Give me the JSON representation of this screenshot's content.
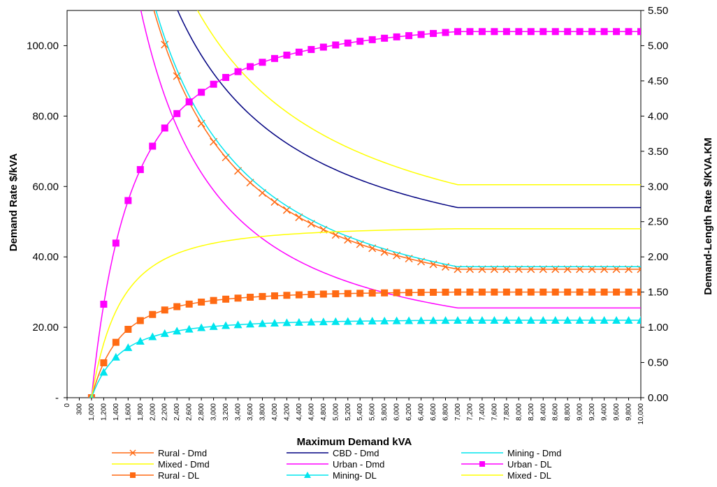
{
  "chart_data": {
    "type": "line",
    "xlabel": "Maximum Demand kVA",
    "ylabel_left": "Demand Rate $/kVA",
    "ylabel_right": "Demand-Length Rate $/KVA.KM",
    "x_ticks": [
      "0",
      "300",
      "1,000",
      "1,200",
      "1,400",
      "1,600",
      "1,800",
      "2,000",
      "2,200",
      "2,400",
      "2,600",
      "2,800",
      "3,000",
      "3,200",
      "3,400",
      "3,600",
      "3,800",
      "4,000",
      "4,200",
      "4,400",
      "4,600",
      "4,800",
      "5,000",
      "5,200",
      "5,400",
      "5,600",
      "5,800",
      "6,000",
      "6,200",
      "6,400",
      "6,600",
      "6,800",
      "7,000",
      "7,200",
      "7,400",
      "7,600",
      "7,800",
      "8,000",
      "8,200",
      "8,400",
      "8,600",
      "8,800",
      "9,000",
      "9,200",
      "9,400",
      "9,600",
      "9,800",
      "10,000"
    ],
    "y_left_ticks": [
      "-",
      "20.00",
      "40.00",
      "60.00",
      "80.00",
      "100.00"
    ],
    "y_right_ticks": [
      "0.00",
      "0.50",
      "1.00",
      "1.50",
      "2.00",
      "2.50",
      "3.00",
      "3.50",
      "4.00",
      "4.50",
      "5.00",
      "5.50"
    ],
    "y_left_range": [
      0,
      110
    ],
    "y_right_range": [
      0,
      5.5
    ],
    "legend_position": "bottom",
    "grid": false,
    "series": [
      {
        "name": "Rural - Dmd",
        "axis": "left",
        "color": "#ff6a13",
        "marker": "x",
        "a": 36.5,
        "b": 167,
        "p": 1.35,
        "floor": 1000,
        "plateau": 7000
      },
      {
        "name": "CBD - Dmd",
        "axis": "left",
        "color": "#000080",
        "marker": "none",
        "a": 54,
        "b": 155,
        "p": 1.2,
        "floor": 1000,
        "plateau": 7000
      },
      {
        "name": "Mining - Dmd",
        "axis": "left",
        "color": "#00e5ee",
        "marker": "none",
        "a": 37.2,
        "b": 168,
        "p": 1.33,
        "floor": 1000,
        "plateau": 7000
      },
      {
        "name": "Mixed - Dmd",
        "axis": "left",
        "color": "#ffff00",
        "marker": "none",
        "a": 60.5,
        "b": 158,
        "p": 1.1,
        "floor": 1000,
        "plateau": 7000
      },
      {
        "name": "Urban - Dmd",
        "axis": "left",
        "color": "#ff00ff",
        "marker": "none",
        "a": 25.5,
        "b": 168,
        "p": 1.45,
        "floor": 1000,
        "plateau": 7000
      },
      {
        "name": "Urban - DL",
        "axis": "right",
        "color": "#ff00ff",
        "marker": "square",
        "a": 5.2,
        "b": 5.2,
        "p": 0.95,
        "floor": 1000,
        "plateau": 7000
      },
      {
        "name": "Rural - DL",
        "axis": "right",
        "color": "#ff6a13",
        "marker": "square",
        "a": 1.5,
        "b": 1.5,
        "p": 1.35,
        "floor": 1000,
        "plateau": 7000
      },
      {
        "name": "Mining- DL",
        "axis": "right",
        "color": "#00e5ee",
        "marker": "triangle",
        "a": 1.1,
        "b": 1.1,
        "p": 1.35,
        "floor": 1000,
        "plateau": 7000
      },
      {
        "name": "Mixed - DL",
        "axis": "right",
        "color": "#ffff00",
        "marker": "none",
        "a": 2.4,
        "b": 2.4,
        "p": 1.3,
        "floor": 1000,
        "plateau": 7000
      }
    ]
  }
}
